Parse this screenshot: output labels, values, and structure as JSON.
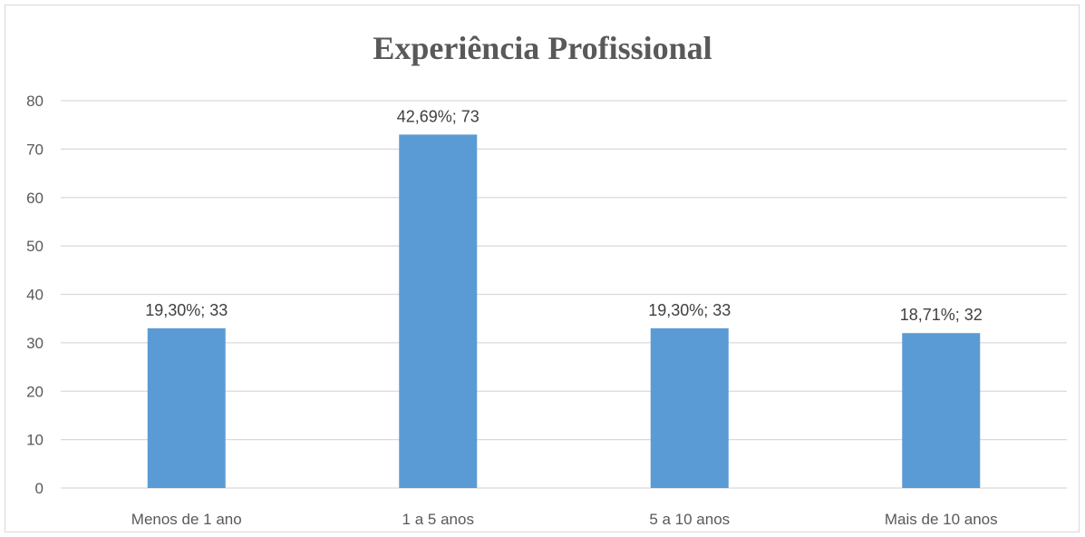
{
  "chart_data": {
    "type": "bar",
    "title": "Experiência Profissional",
    "categories": [
      "Menos de 1 ano",
      "1 a 5 anos",
      "5 a 10 anos",
      "Mais de 10 anos"
    ],
    "values": [
      33,
      73,
      33,
      32
    ],
    "data_labels": [
      "19,30%; 33",
      "42,69%; 73",
      "19,30%; 33",
      "18,71%; 32"
    ],
    "ylim": [
      0,
      80
    ],
    "yticks": [
      "0",
      "10",
      "20",
      "30",
      "40",
      "50",
      "60",
      "70",
      "80"
    ],
    "grid": true,
    "bar_color": "#5B9BD5",
    "grid_color": "#d9d9d9"
  }
}
